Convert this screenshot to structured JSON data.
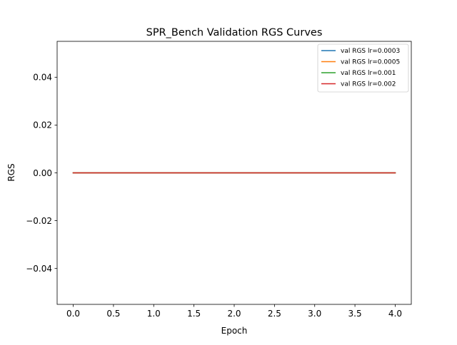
{
  "chart_data": {
    "type": "line",
    "title": "SPR_Bench Validation RGS Curves",
    "xlabel": "Epoch",
    "ylabel": "RGS",
    "x": [
      0,
      1,
      2,
      3,
      4
    ],
    "xlim": [
      -0.2,
      4.2
    ],
    "ylim": [
      -0.055,
      0.055
    ],
    "xticks": [
      0.0,
      0.5,
      1.0,
      1.5,
      2.0,
      2.5,
      3.0,
      3.5,
      4.0
    ],
    "xtick_labels": [
      "0.0",
      "0.5",
      "1.0",
      "1.5",
      "2.0",
      "2.5",
      "3.0",
      "3.5",
      "4.0"
    ],
    "yticks": [
      -0.04,
      -0.02,
      0.0,
      0.02,
      0.04
    ],
    "ytick_labels": [
      "−0.04",
      "−0.02",
      "0.00",
      "0.02",
      "0.04"
    ],
    "grid": false,
    "legend_position": "top-right",
    "series": [
      {
        "name": "val RGS lr=0.0003",
        "color": "#1f77b4",
        "values": [
          0,
          0,
          0,
          0,
          0
        ]
      },
      {
        "name": "val RGS lr=0.0005",
        "color": "#ff7f0e",
        "values": [
          0,
          0,
          0,
          0,
          0
        ]
      },
      {
        "name": "val RGS lr=0.001",
        "color": "#2ca02c",
        "values": [
          0,
          0,
          0,
          0,
          0
        ]
      },
      {
        "name": "val RGS lr=0.002",
        "color": "#d62728",
        "values": [
          0,
          0,
          0,
          0,
          0
        ]
      }
    ]
  }
}
